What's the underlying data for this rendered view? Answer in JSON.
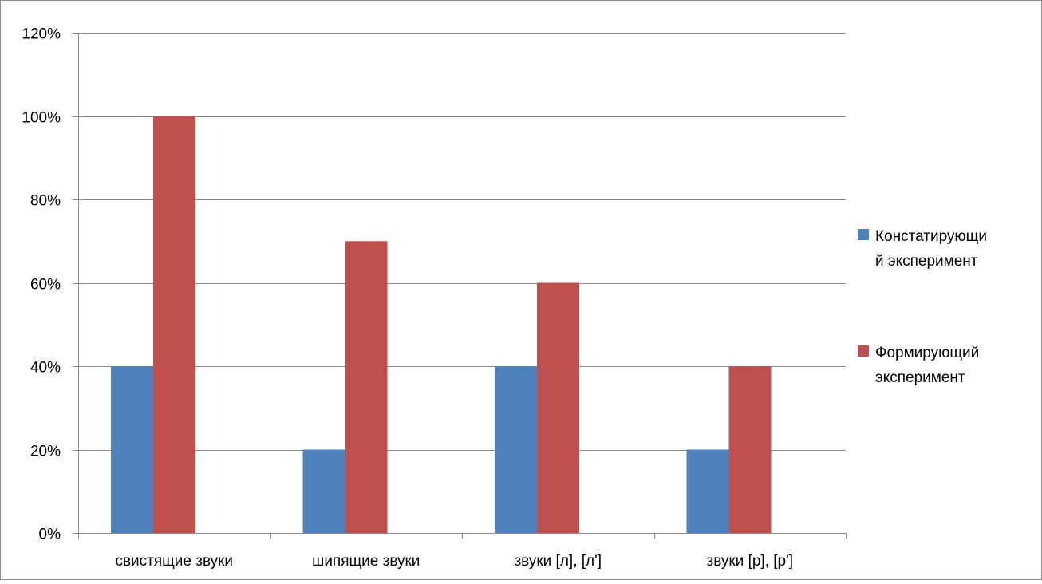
{
  "chart_data": {
    "type": "bar",
    "title": "",
    "xlabel": "",
    "ylabel": "",
    "categories": [
      "свистящие звуки",
      "шипящие звуки",
      "звуки [л], [л']",
      "звуки [р], [р']"
    ],
    "series": [
      {
        "name": "Констатирующий эксперимент",
        "legend_lines": [
          "Констатирующи",
          "й эксперимент"
        ],
        "color": "#4F81BD",
        "values": [
          40,
          20,
          40,
          20
        ]
      },
      {
        "name": "Формирующий эксперимент",
        "legend_lines": [
          "Формирующий",
          "эксперимент"
        ],
        "color": "#C0504D",
        "values": [
          100,
          70,
          60,
          40
        ]
      }
    ],
    "ylim": [
      0,
      120
    ],
    "yticks": [
      0,
      20,
      40,
      60,
      80,
      100,
      120
    ],
    "ytick_labels": [
      "0%",
      "20%",
      "40%",
      "60%",
      "80%",
      "100%",
      "120%"
    ],
    "grid": true,
    "legend_position": "right"
  }
}
